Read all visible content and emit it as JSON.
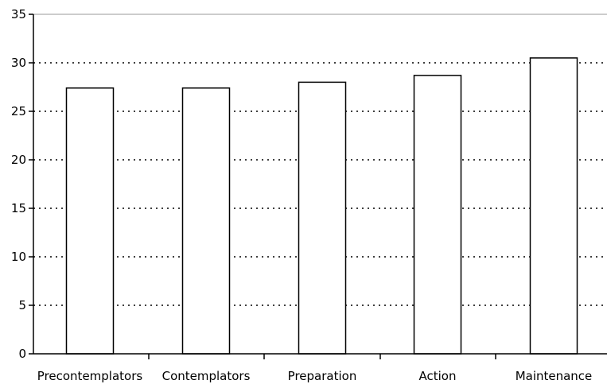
{
  "chart_data": {
    "type": "bar",
    "title": "",
    "xlabel": "",
    "ylabel": "",
    "categories": [
      "Precontemplators",
      "Contemplators",
      "Preparation",
      "Action",
      "Maintenance"
    ],
    "values": [
      27.4,
      27.4,
      28.0,
      28.7,
      30.5
    ],
    "ylim": [
      0,
      35
    ],
    "yticks": [
      0,
      5,
      10,
      15,
      20,
      25,
      30,
      35
    ],
    "grid": "horizontal dotted",
    "legend": "none",
    "colors": {
      "bar_fill": "#ffffff",
      "bar_stroke": "#000000",
      "grid": "#000000",
      "axis": "#000000",
      "top_line": "#999999"
    }
  }
}
